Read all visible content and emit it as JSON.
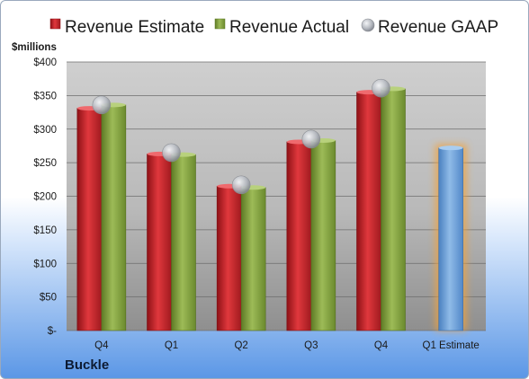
{
  "company": "Buckle",
  "colors": {
    "estimate": "#c9252b",
    "actual": "#7f9f3b",
    "gaap": "#b8bcc4",
    "forecast": "#6a9fd6",
    "forecast_glow": "#f2a23a"
  },
  "chart_data": {
    "type": "bar",
    "ylabel": "$millions",
    "ylim": [
      0,
      400
    ],
    "yticks": [
      0,
      50,
      100,
      150,
      200,
      250,
      300,
      350,
      400
    ],
    "ytick_labels": [
      "$-",
      "$50",
      "$100",
      "$150",
      "$200",
      "$250",
      "$300",
      "$350",
      "$400"
    ],
    "categories": [
      "Q4",
      "Q1",
      "Q2",
      "Q3",
      "Q4",
      "Q1 Estimate"
    ],
    "legend_position": "top",
    "series": [
      {
        "name": "Revenue Estimate",
        "marker": "bar",
        "values": [
          331,
          263,
          215,
          281,
          355,
          272
        ]
      },
      {
        "name": "Revenue Actual",
        "marker": "bar",
        "values": [
          336,
          262,
          213,
          283,
          360,
          null
        ]
      },
      {
        "name": "Revenue GAAP",
        "marker": "circle",
        "values": [
          336,
          265,
          217,
          285,
          361,
          null
        ]
      }
    ]
  }
}
